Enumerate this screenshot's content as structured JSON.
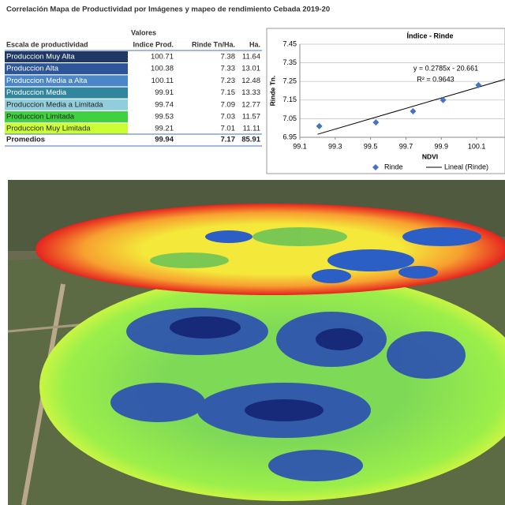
{
  "title": "Correlación Mapa de Productividad por Imágenes y mapeo de rendimiento Cebada 2019-20",
  "table": {
    "group_header": "Valores",
    "columns": [
      "Escala de productividad",
      "Indice Prod.",
      "Rinde Tn/Ha.",
      "Ha."
    ],
    "rows": [
      [
        "Produccion Muy Alta",
        "100.71",
        "7.38",
        "11.64"
      ],
      [
        "Produccion Alta",
        "100.38",
        "7.33",
        "13.01"
      ],
      [
        "Produccion Media a Alta",
        "100.11",
        "7.23",
        "12.48"
      ],
      [
        "Produccion Media",
        "99.91",
        "7.15",
        "13.33"
      ],
      [
        "Produccion Media a Limitada",
        "99.74",
        "7.09",
        "12.77"
      ],
      [
        "Produccion Limitada",
        "99.53",
        "7.03",
        "11.57"
      ],
      [
        "Produccion Muy Limitada",
        "99.21",
        "7.01",
        "11.11"
      ]
    ],
    "colors": [
      "#1f3864",
      "#2e5597",
      "#4a86c8",
      "#31859c",
      "#92cddc",
      "#3fd13f",
      "#ccff33"
    ],
    "footer": [
      "Promedios",
      "99.94",
      "7.17",
      "85.91"
    ]
  },
  "chart_data": {
    "type": "scatter",
    "title": "Índice - Rinde",
    "x_label": "NDVI",
    "y_label": "Rinde Tn.",
    "xlim": [
      99.1,
      100.26
    ],
    "xticks": [
      99.1,
      99.3,
      99.5,
      99.7,
      99.9,
      100.1
    ],
    "ylim": [
      6.95,
      7.45
    ],
    "yticks": [
      6.95,
      7.05,
      7.15,
      7.25,
      7.35,
      7.45
    ],
    "grid": true,
    "series": [
      {
        "name": "Rinde",
        "color": "#4472c4",
        "x": [
          99.21,
          99.53,
          99.74,
          99.91,
          100.11
        ],
        "values": [
          7.01,
          7.03,
          7.09,
          7.15,
          7.23
        ]
      }
    ],
    "trendline": {
      "name": "Lineal (Rinde)",
      "color": "#000000",
      "slope": 0.2785,
      "intercept": -20.661,
      "label": "y = 0.2785x - 20.661",
      "r2_label": "R² = 0.9643"
    }
  }
}
